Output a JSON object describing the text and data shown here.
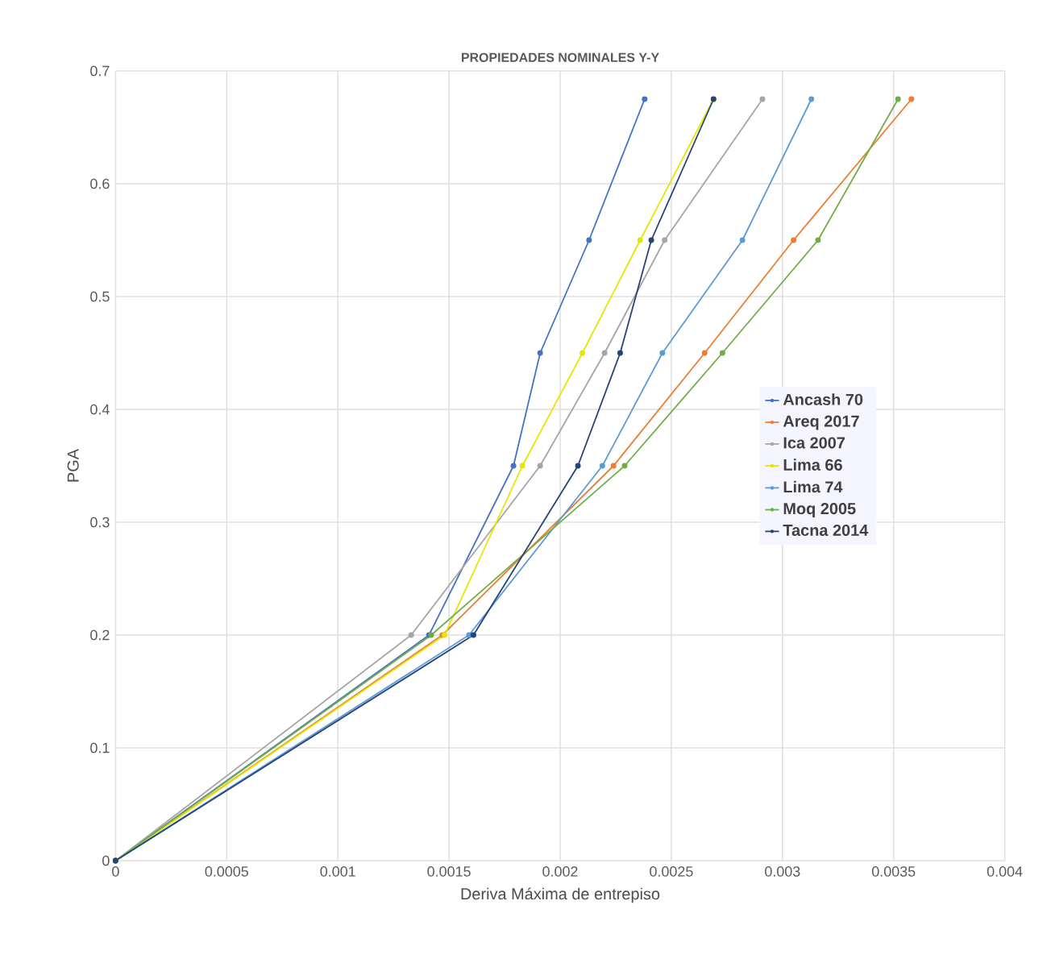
{
  "chart_data": {
    "type": "line",
    "title": "PROPIEDADES NOMINALES Y-Y",
    "xlabel": "Deriva Máxima de entrepiso",
    "ylabel": "PGA",
    "xlim": [
      0,
      0.004
    ],
    "ylim": [
      0,
      0.7
    ],
    "xticks": [
      0,
      0.0005,
      0.001,
      0.0015,
      0.002,
      0.0025,
      0.003,
      0.0035,
      0.004
    ],
    "yticks": [
      0,
      0.1,
      0.2,
      0.3,
      0.4,
      0.5,
      0.6,
      0.7
    ],
    "grid": true,
    "legend": "right",
    "marker": "circle",
    "series": [
      {
        "name": "Ancash 70",
        "color": "#4472c4",
        "x": [
          0,
          0.00141,
          0.00179,
          0.00191,
          0.00213,
          0.00238
        ],
        "values": [
          0,
          0.2,
          0.35,
          0.45,
          0.55,
          0.675
        ]
      },
      {
        "name": "Areq 2017",
        "color": "#ed7d31",
        "x": [
          0,
          0.00147,
          0.00224,
          0.00265,
          0.00305,
          0.00358
        ],
        "values": [
          0,
          0.2,
          0.35,
          0.45,
          0.55,
          0.675
        ]
      },
      {
        "name": "Ica 2007",
        "color": "#a5a5a5",
        "x": [
          0,
          0.00133,
          0.00191,
          0.0022,
          0.00247,
          0.00291
        ],
        "values": [
          0,
          0.2,
          0.35,
          0.45,
          0.55,
          0.675
        ]
      },
      {
        "name": "Lima 66",
        "color": "#e6e600",
        "x": [
          0,
          0.00148,
          0.00183,
          0.0021,
          0.00236,
          0.00269
        ],
        "values": [
          0,
          0.2,
          0.35,
          0.45,
          0.55,
          0.675
        ]
      },
      {
        "name": "Lima 74",
        "color": "#5b9bd5",
        "x": [
          0,
          0.00159,
          0.00219,
          0.00246,
          0.00282,
          0.00313
        ],
        "values": [
          0,
          0.2,
          0.35,
          0.45,
          0.55,
          0.675
        ]
      },
      {
        "name": "Moq 2005",
        "color": "#70ad47",
        "x": [
          0,
          0.00142,
          0.00229,
          0.00273,
          0.00316,
          0.00352
        ],
        "values": [
          0,
          0.2,
          0.35,
          0.45,
          0.55,
          0.675
        ]
      },
      {
        "name": "Tacna 2014",
        "color": "#264478",
        "x": [
          0,
          0.00161,
          0.00208,
          0.00227,
          0.00241,
          0.00269
        ],
        "values": [
          0,
          0.2,
          0.35,
          0.45,
          0.55,
          0.675
        ]
      }
    ]
  }
}
